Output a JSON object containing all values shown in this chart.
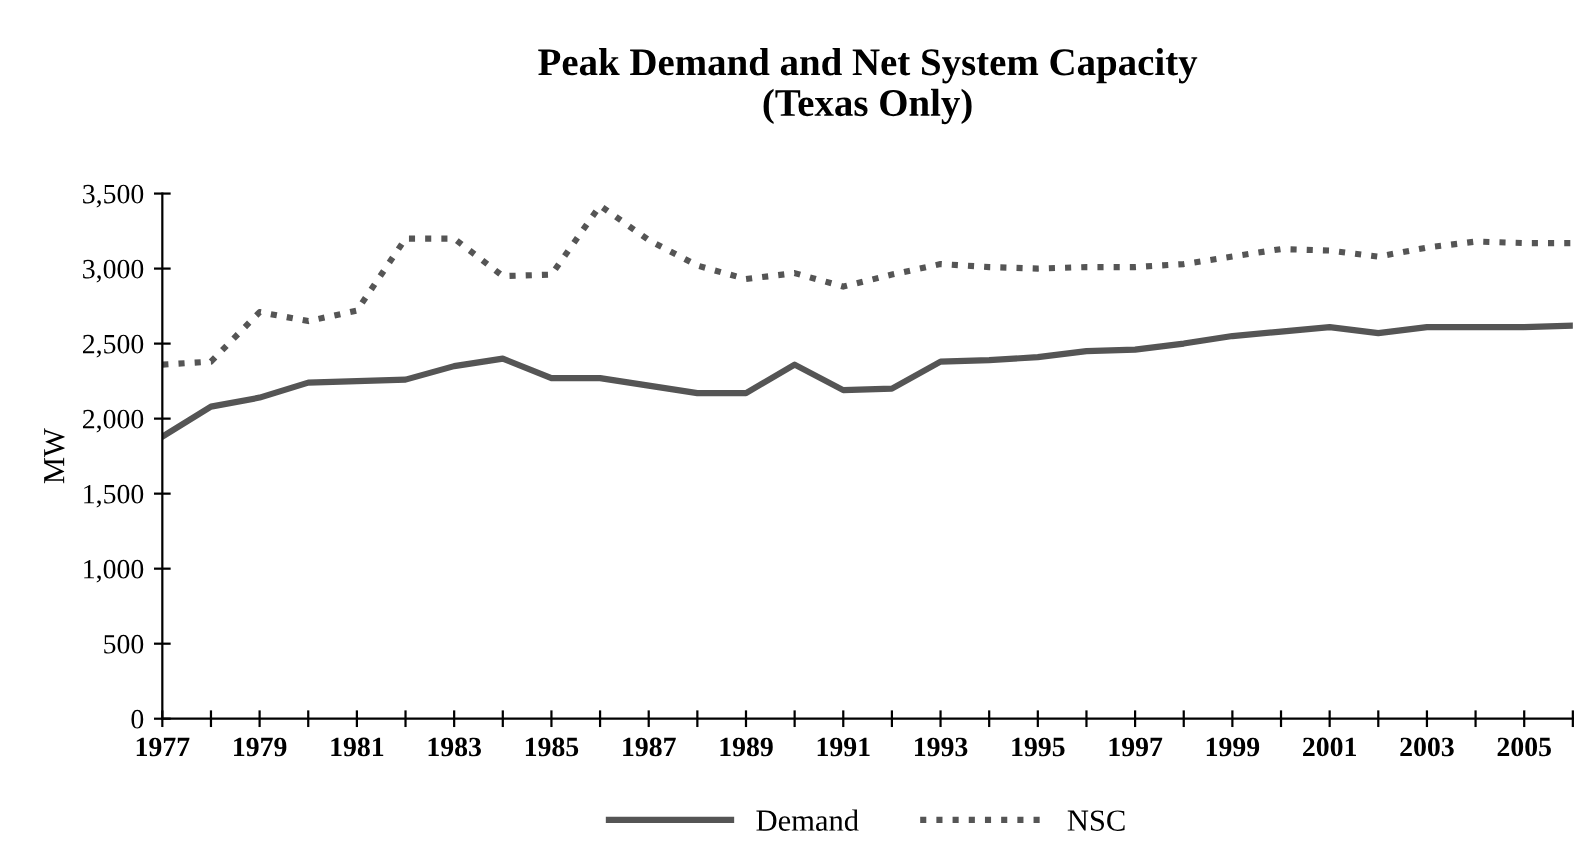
{
  "chart_data": {
    "type": "line",
    "title": "Peak Demand and Net System Capacity\n(Texas Only)",
    "ylabel": "MW",
    "x": [
      1977,
      1978,
      1979,
      1980,
      1981,
      1982,
      1983,
      1984,
      1985,
      1986,
      1987,
      1988,
      1989,
      1990,
      1991,
      1992,
      1993,
      1994,
      1995,
      1996,
      1997,
      1998,
      1999,
      2000,
      2001,
      2002,
      2003,
      2004,
      2005,
      2006
    ],
    "series": [
      {
        "name": "Demand",
        "color": "#555555",
        "line_style": "solid",
        "values": [
          1880,
          2080,
          2140,
          2240,
          2250,
          2260,
          2350,
          2400,
          2270,
          2270,
          2220,
          2170,
          2170,
          2360,
          2190,
          2200,
          2380,
          2390,
          2410,
          2450,
          2460,
          2500,
          2550,
          2580,
          2610,
          2570,
          2610,
          2610,
          2610,
          2620
        ]
      },
      {
        "name": "NSC",
        "color": "#555555",
        "line_style": "dotted",
        "values": [
          2360,
          2380,
          2710,
          2650,
          2720,
          3200,
          3200,
          2950,
          2960,
          3420,
          3190,
          3020,
          2930,
          2970,
          2880,
          2960,
          3030,
          3010,
          3000,
          3010,
          3010,
          3030,
          3080,
          3130,
          3120,
          3080,
          3140,
          3180,
          3170,
          3170
        ]
      }
    ],
    "xlim": [
      1977,
      2006
    ],
    "xticks": [
      1977,
      {
        "value": 1978,
        "label": null
      },
      1979,
      {
        "value": 1980,
        "label": null
      },
      1981,
      {
        "value": 1982,
        "label": null
      },
      1983,
      {
        "value": 1984,
        "label": null
      },
      1985,
      {
        "value": 1986,
        "label": null
      },
      1987,
      {
        "value": 1988,
        "label": null
      },
      1989,
      {
        "value": 1990,
        "label": null
      },
      1991,
      {
        "value": 1992,
        "label": null
      },
      1993,
      {
        "value": 1994,
        "label": null
      },
      1995,
      {
        "value": 1996,
        "label": null
      },
      1997,
      {
        "value": 1998,
        "label": null
      },
      1999,
      {
        "value": 2000,
        "label": null
      },
      2001,
      {
        "value": 2002,
        "label": null
      },
      2003,
      {
        "value": 2004,
        "label": null
      },
      2005,
      {
        "value": 2006,
        "label": null
      }
    ],
    "ylim": [
      0,
      3500
    ],
    "yticks": [
      {
        "value": 0,
        "label": "0"
      },
      {
        "value": 500,
        "label": "500"
      },
      {
        "value": 1000,
        "label": "1,000"
      },
      {
        "value": 1500,
        "label": "1,500"
      },
      {
        "value": 2000,
        "label": "2,000"
      },
      {
        "value": 2500,
        "label": "2,500"
      },
      {
        "value": 3000,
        "label": "3,000"
      },
      {
        "value": 3500,
        "label": "3,500"
      }
    ],
    "grid": false,
    "legend": "bottom",
    "marker": "none"
  }
}
